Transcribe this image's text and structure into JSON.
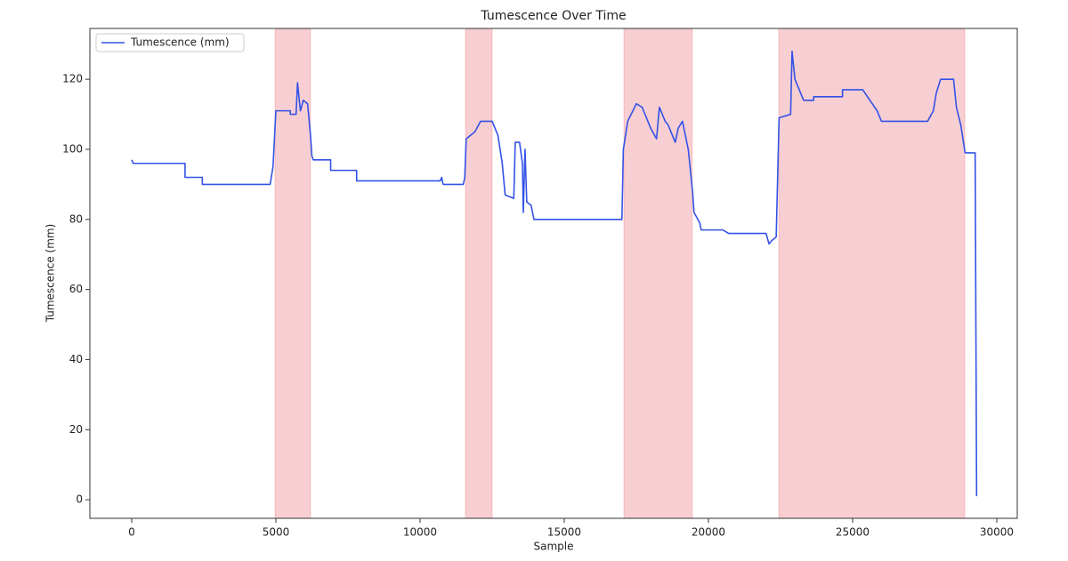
{
  "chart_data": {
    "type": "line",
    "title": "Tumescence Over Time",
    "x_label": "Sample",
    "y_label": "Tumescence (mm)",
    "x": [
      0,
      50,
      1850,
      1850,
      2450,
      2450,
      4800,
      4900,
      5000,
      5500,
      5500,
      5700,
      5750,
      5850,
      5950,
      6100,
      6200,
      6250,
      6300,
      6900,
      6900,
      7800,
      7800,
      10700,
      10750,
      10800,
      11500,
      11550,
      11600,
      11900,
      12100,
      12500,
      12700,
      12850,
      12950,
      13250,
      13300,
      13450,
      13550,
      13580,
      13640,
      13700,
      13850,
      13950,
      17000,
      17050,
      17200,
      17500,
      17700,
      18000,
      18200,
      18300,
      18500,
      18600,
      18850,
      18950,
      19100,
      19300,
      19450,
      19500,
      19700,
      19750,
      20500,
      20700,
      22000,
      22100,
      22200,
      22350,
      22450,
      22850,
      22900,
      23000,
      23150,
      23300,
      23650,
      23650,
      24650,
      24650,
      25350,
      25850,
      26000,
      27600,
      27800,
      27900,
      28050,
      28500,
      28600,
      28750,
      28900,
      29250,
      29300
    ],
    "series": [
      {
        "name": "Tumescence (mm)",
        "color": "#3352e6",
        "values": [
          97,
          96,
          96,
          92,
          92,
          90,
          90,
          95,
          111,
          111,
          110,
          110,
          119,
          111,
          114,
          113,
          104,
          98,
          97,
          97,
          94,
          94,
          91,
          91,
          92,
          90,
          90,
          92,
          103,
          105,
          108,
          108,
          104,
          96,
          87,
          86,
          102,
          102,
          96,
          82,
          100,
          85,
          84,
          80,
          80,
          100,
          108,
          113,
          112,
          106,
          103,
          112,
          108,
          107,
          102,
          106,
          108,
          100,
          88,
          82,
          79,
          77,
          77,
          76,
          76,
          73,
          74,
          75,
          109,
          110,
          128,
          120,
          117,
          114,
          114,
          115,
          115,
          117,
          117,
          111,
          108,
          108,
          111,
          116,
          120,
          120,
          112,
          107,
          99,
          99,
          1
        ]
      }
    ],
    "spans": [
      [
        4970,
        6200
      ],
      [
        11575,
        12500
      ],
      [
        17070,
        19440
      ],
      [
        22440,
        28890
      ]
    ],
    "span_color": "#f5c2c7",
    "xlim": [
      -1450,
      30710
    ],
    "ylim": [
      -5.3,
      134.5
    ],
    "xticks": [
      0,
      5000,
      10000,
      15000,
      20000,
      25000,
      30000
    ],
    "yticks": [
      0,
      20,
      40,
      60,
      80,
      100,
      120
    ],
    "legend": "upper left"
  }
}
